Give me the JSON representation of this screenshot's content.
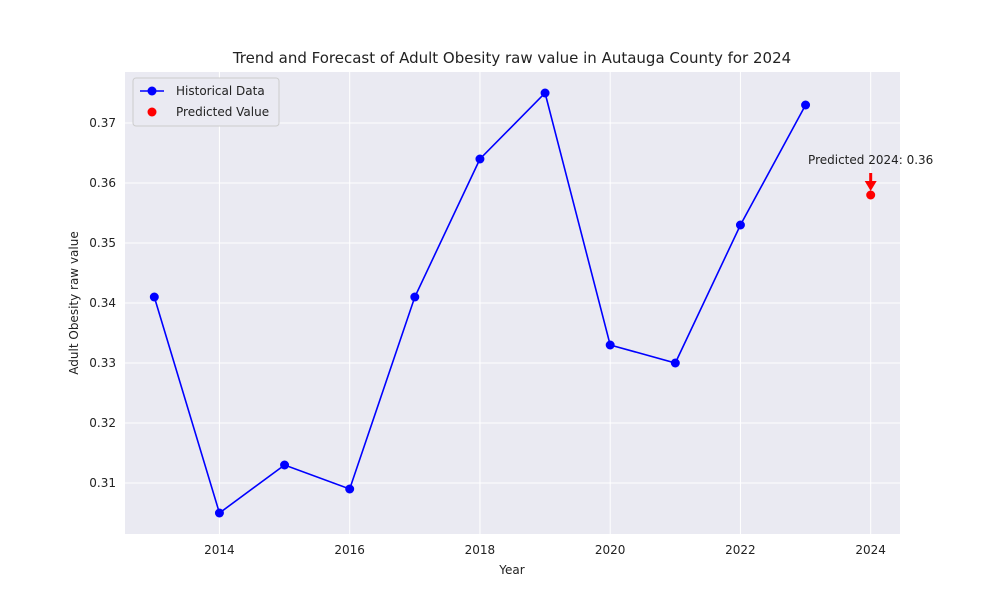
{
  "chart_data": {
    "type": "line",
    "title": "Trend and Forecast of Adult Obesity raw value in Autauga County for 2024",
    "xlabel": "Year",
    "ylabel": "Adult Obesity raw value",
    "xlim": [
      2012.55,
      2024.45
    ],
    "ylim": [
      0.3015,
      0.3785
    ],
    "xticks": [
      2014,
      2016,
      2018,
      2020,
      2022,
      2024
    ],
    "yticks": [
      0.31,
      0.32,
      0.33,
      0.34,
      0.35,
      0.36,
      0.37
    ],
    "ytick_labels": [
      "0.31",
      "0.32",
      "0.33",
      "0.34",
      "0.35",
      "0.36",
      "0.37"
    ],
    "grid": true,
    "legend_position": "top-left",
    "background_color": "#eaeaf2",
    "series": [
      {
        "name": "Historical Data",
        "color": "#0000ff",
        "x": [
          2013,
          2014,
          2015,
          2016,
          2017,
          2018,
          2019,
          2020,
          2021,
          2022,
          2023
        ],
        "values": [
          0.341,
          0.305,
          0.313,
          0.309,
          0.341,
          0.364,
          0.375,
          0.333,
          0.33,
          0.353,
          0.373
        ]
      },
      {
        "name": "Predicted Value",
        "color": "#ff0000",
        "x": [
          2024
        ],
        "values": [
          0.358
        ]
      }
    ],
    "annotation": {
      "text": "Predicted 2024: 0.36",
      "x": 2024,
      "y": 0.358,
      "color": "#ff0000"
    }
  }
}
